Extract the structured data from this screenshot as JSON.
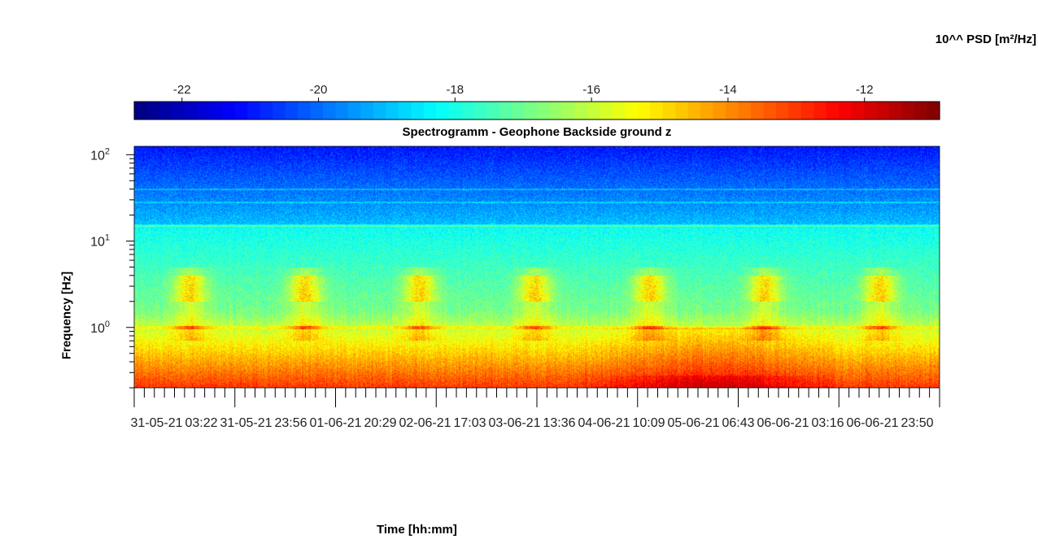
{
  "chart_data": {
    "type": "heatmap",
    "title": "Spectrogramm - Geophone Backside ground z",
    "xlabel": "Time [hh:mm]",
    "ylabel": "Frequency [Hz]",
    "colorbar": {
      "label": "10^^ PSD [m²/Hz]",
      "ticks": [
        -22,
        -20,
        -18,
        -16,
        -14,
        -12
      ],
      "range": [
        -22.7,
        -10.9
      ],
      "colormap": "jet",
      "placement": "top"
    },
    "x_ticks": [
      "31-05-21",
      "03:22",
      "31-05-21",
      "23:56",
      "01-06-21",
      "20:29",
      "02-06-21",
      "17:03",
      "03-06-21",
      "13:36",
      "04-06-21",
      "10:09",
      "05-06-21",
      "06:43",
      "06-06-21",
      "03:16",
      "06-06-21",
      "23:50"
    ],
    "y_scale": "log",
    "y_ticks": [
      {
        "base": "10",
        "exp": "0",
        "value": 1
      },
      {
        "base": "10",
        "exp": "1",
        "value": 10
      },
      {
        "base": "10",
        "exp": "2",
        "value": 100
      }
    ],
    "ylim": [
      0.2,
      125
    ],
    "time_range_hours": [
      0,
      168
    ],
    "grid": false,
    "features": {
      "noise_floor_high_freq_log10psd": -21,
      "low_freq_band_log10psd": -13,
      "daytime_bursts_hz": [
        2,
        4
      ],
      "daytime_bursts_log10psd": -14,
      "tonal_line_hz": 1.0,
      "strongest_region_days": [
        4.4,
        5.7
      ]
    }
  }
}
